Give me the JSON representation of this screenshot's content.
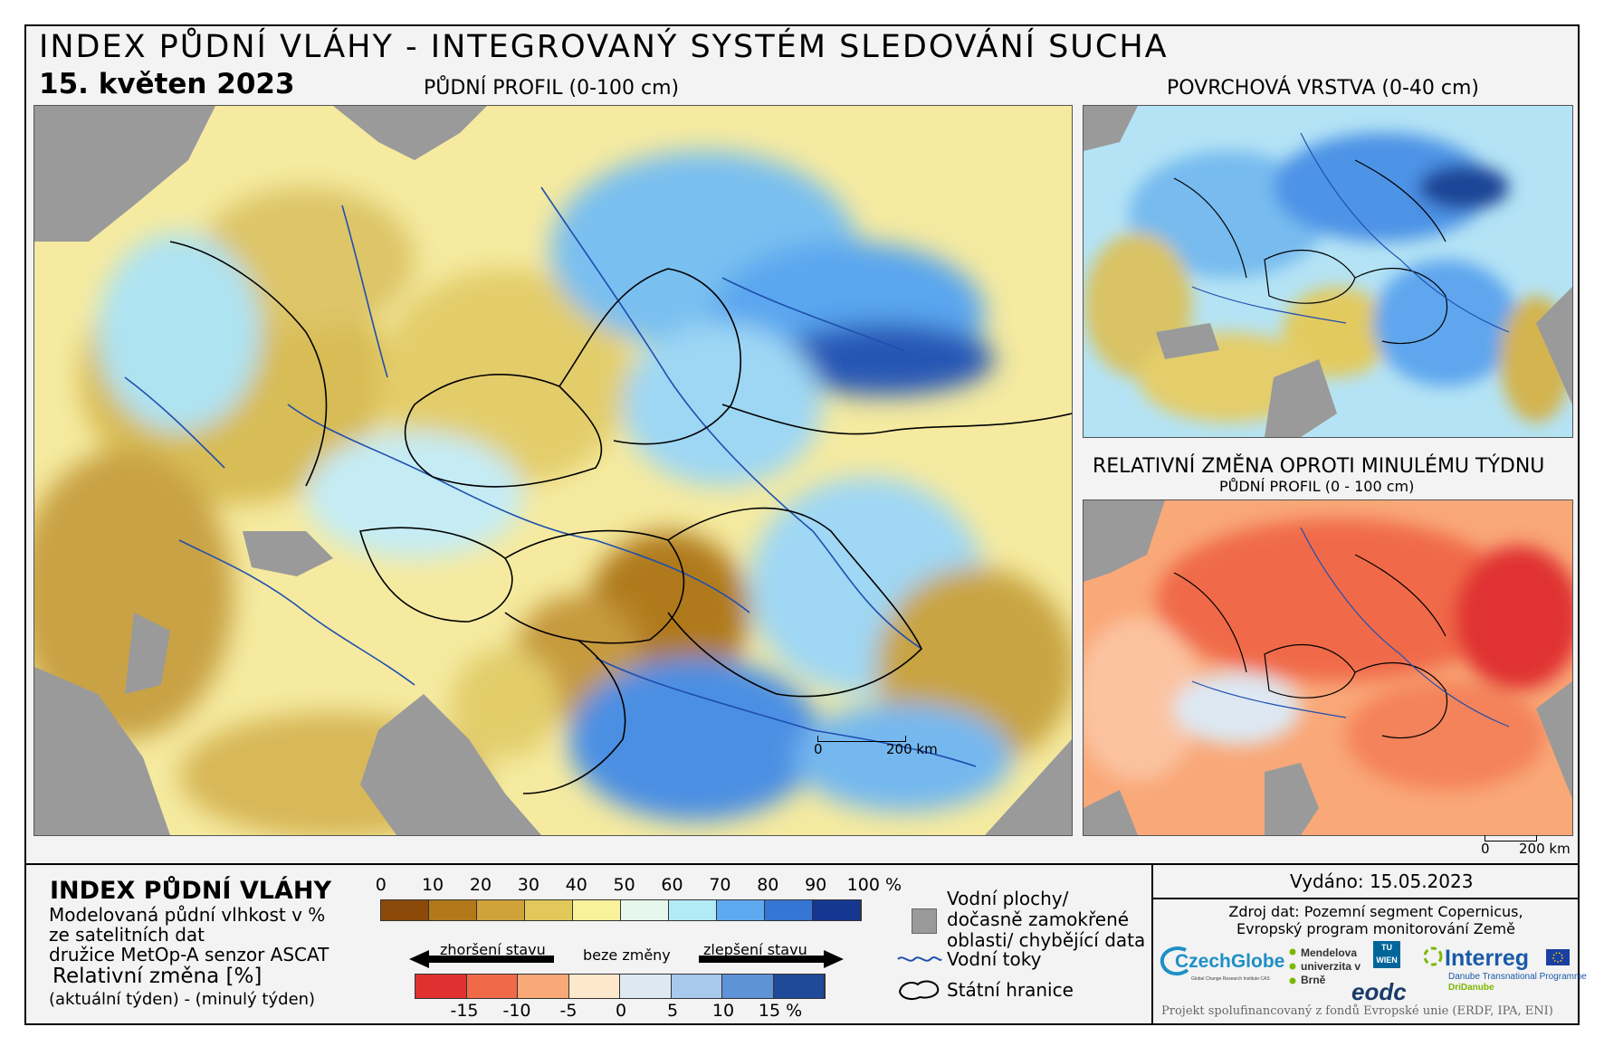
{
  "header": {
    "title": "INDEX PŮDNÍ VLÁHY - INTEGROVANÝ SYSTÉM SLEDOVÁNÍ SUCHA",
    "date": "15. květen 2023"
  },
  "panels": {
    "main": {
      "label": "PŮDNÍ PROFIL (0-100 cm)"
    },
    "surface": {
      "label": "POVRCHOVÁ VRSTVA (0-40 cm)"
    },
    "change": {
      "label": "RELATIVNÍ ZMĚNA OPROTI MINULÉMU TÝDNU",
      "sublabel": "PŮDNÍ PROFIL (0 - 100 cm)"
    }
  },
  "scalebars": {
    "main": {
      "start": "0",
      "end": "200 km"
    },
    "small": {
      "start": "0",
      "end": "200 km"
    }
  },
  "legend": {
    "title": "INDEX PŮDNÍ VLÁHY",
    "desc_lines": [
      "Modelovaná půdní vlhkost v %",
      "ze satelitních dat",
      "družice MetOp-A senzor ASCAT"
    ],
    "change_title": "Relativní změna [%]",
    "change_desc": "(aktuální týden) - (minulý týden)",
    "index_ticks": [
      "0",
      "10",
      "20",
      "30",
      "40",
      "50",
      "60",
      "70",
      "80",
      "90",
      "100 %"
    ],
    "index_colors": [
      "#8b4a0a",
      "#b2781a",
      "#cfa33a",
      "#e2c85a",
      "#f8f29a",
      "#e6f7ee",
      "#b2ebf6",
      "#5eaaf0",
      "#3575d3",
      "#163791"
    ],
    "worse_label": "zhoršení stavu",
    "nochange_label": "beze změny",
    "better_label": "zlepšení stavu",
    "change_ticks": [
      "-15",
      "-10",
      "-5",
      "0",
      "5",
      "10",
      "15 %"
    ],
    "change_colors": [
      "#e03030",
      "#f06a4a",
      "#f9a878",
      "#fde8cc",
      "#dde8f3",
      "#a8c8ec",
      "#5f93d8",
      "#1f4a9a"
    ],
    "water_bodies": "Vodní plochy/ dočasně zamokřené oblasti/ chybějící data",
    "rivers": "Vodní toky",
    "borders": "Státní hranice"
  },
  "info": {
    "issued": "Vydáno: 15.05.2023",
    "source_line1": "Zdroj dat: Pozemní segment Copernicus,",
    "source_line2": "Evropský program monitorování Země",
    "logos": {
      "czechglobe": "CzechGlobe",
      "czechglobe_sub": "Global Change Research Institute CAS",
      "mendelu": "Mendelova univerzita v Brně",
      "tu": "TU WIEN",
      "eodc": "eodc",
      "interreg": "Interreg",
      "interreg_sub": "Danube Transnational Programme",
      "dridanube": "DriDanube"
    },
    "footer": "Projekt spolufinancovaný z fondů Evropské unie (ERDF, IPA, ENI)"
  }
}
